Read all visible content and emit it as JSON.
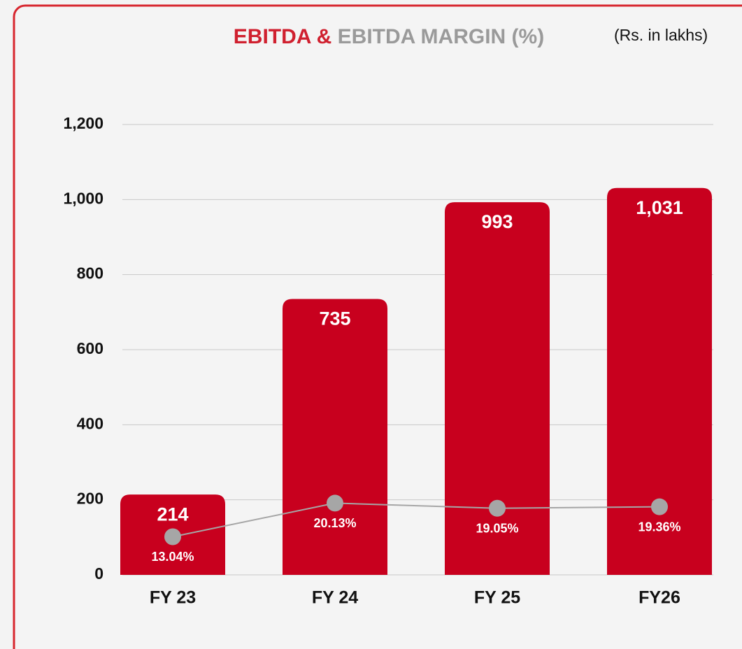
{
  "chart_data": {
    "type": "bar",
    "title": "EBITDA &",
    "title_part2": "EBITDA MARGIN (%)",
    "subtitle": "(Rs. in lakhs)",
    "categories": [
      "FY 23",
      "FY 24",
      "FY 25",
      "FY26"
    ],
    "series": [
      {
        "color": "#c8001e",
        "values": [
          214,
          735,
          993,
          1031
        ],
        "value_labels": [
          "214",
          "735",
          "993",
          "1,031"
        ]
      },
      {
        "type": "line",
        "axis": "y2",
        "color": "#a6a6a6",
        "values": [
          13.04,
          20.13,
          19.05,
          19.36
        ],
        "value_labels": [
          "13.04%",
          "20.13%",
          "19.05%",
          "19.36%"
        ]
      }
    ],
    "ylim": [
      0,
      1200
    ],
    "yticks": [
      0,
      {
        "value": 200,
        "label": "200"
      },
      400,
      600,
      800,
      {
        "value": 1000,
        "label": "1,000"
      },
      {
        "value": 1200,
        "label": "1,200"
      }
    ],
    "y2lim": [
      5,
      100
    ],
    "grid": true
  }
}
